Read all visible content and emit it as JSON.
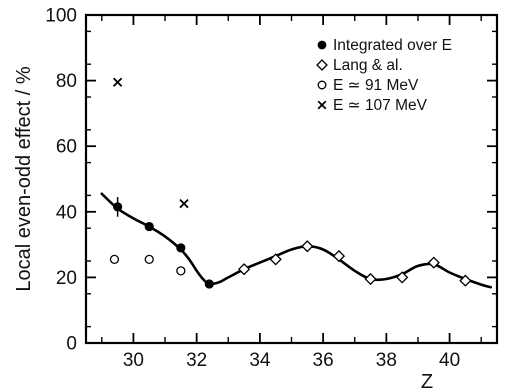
{
  "chart_data": {
    "type": "scatter",
    "title": "",
    "xlabel": "Z",
    "ylabel": "Local even-odd effect / %",
    "xlim": [
      28.5,
      41.5
    ],
    "ylim": [
      0,
      100
    ],
    "x_ticks": [
      30,
      32,
      34,
      36,
      38,
      40
    ],
    "x_tick_labels": [
      "30",
      "32",
      "34",
      "36",
      "38",
      "40"
    ],
    "y_ticks": [
      0,
      20,
      40,
      60,
      80,
      100
    ],
    "y_tick_labels": [
      "0",
      "20",
      "40",
      "60",
      "80",
      "100"
    ],
    "grid": false,
    "legend_position": "top-right",
    "series": [
      {
        "name": "Integrated over E",
        "marker": "filled-circle",
        "color": "#000000",
        "x": [
          29.5,
          30.5,
          31.5,
          32.4
        ],
        "y": [
          41.5,
          35.5,
          29.0,
          18.0
        ],
        "error": [
          3.0,
          0,
          0,
          0
        ]
      },
      {
        "name": "Lang & al.",
        "marker": "diamond",
        "color": "#000000",
        "x": [
          33.5,
          34.5,
          35.5,
          36.5,
          37.5,
          38.5,
          39.5,
          40.5
        ],
        "y": [
          22.5,
          25.5,
          29.5,
          26.5,
          19.5,
          20.0,
          24.5,
          19.0
        ]
      },
      {
        "name": "E ≃ 91 MeV",
        "marker": "open-circle",
        "color": "#000000",
        "x": [
          29.4,
          30.5,
          31.5
        ],
        "y": [
          25.5,
          25.5,
          22.0
        ]
      },
      {
        "name": "E ≃ 107 MeV",
        "marker": "cross",
        "color": "#000000",
        "x": [
          29.5,
          31.6
        ],
        "y": [
          79.5,
          42.5
        ]
      }
    ],
    "curve": {
      "x": [
        29.0,
        29.5,
        30.0,
        30.5,
        31.0,
        31.5,
        31.8,
        32.0,
        32.2,
        32.4,
        32.7,
        33.0,
        33.5,
        34.0,
        34.5,
        35.0,
        35.5,
        36.0,
        36.5,
        37.0,
        37.5,
        38.0,
        38.5,
        39.0,
        39.5,
        40.0,
        40.5,
        41.0,
        41.3
      ],
      "y": [
        45.5,
        41.0,
        38.0,
        35.5,
        32.5,
        28.5,
        25.0,
        22.0,
        19.5,
        18.0,
        18.5,
        20.0,
        22.5,
        24.5,
        26.5,
        28.5,
        29.5,
        28.5,
        25.5,
        22.0,
        19.5,
        19.5,
        21.0,
        23.5,
        24.0,
        21.5,
        19.5,
        17.8,
        17.0
      ]
    }
  }
}
